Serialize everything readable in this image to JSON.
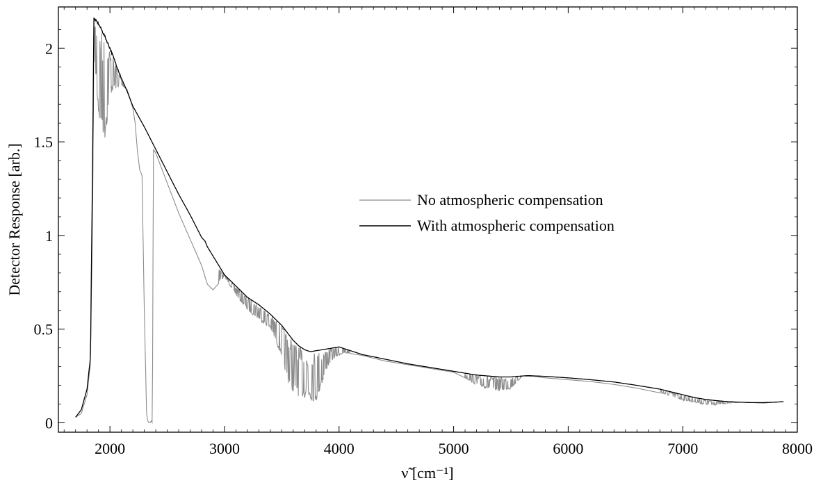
{
  "chart_data": {
    "type": "line",
    "xlabel": "ν̃ [cm⁻¹]",
    "ylabel": "Detector Response [arb.]",
    "xlim": [
      1550,
      8000
    ],
    "ylim": [
      -0.05,
      2.22
    ],
    "xticks": [
      2000,
      3000,
      4000,
      5000,
      6000,
      7000,
      8000
    ],
    "yticks": [
      0,
      0.5,
      1,
      1.5,
      2
    ],
    "ytick_labels": [
      "0",
      "0.5",
      "1",
      "1.5",
      "2"
    ],
    "grid": false,
    "legend_position": "center-right",
    "series": [
      {
        "name": "No atmospheric compensation",
        "color": "#8c8c8c",
        "noisy_ranges": [
          [
            1860,
            2150
          ],
          [
            2950,
            3620
          ],
          [
            3600,
            4100
          ],
          [
            5100,
            5620
          ],
          [
            6800,
            7450
          ]
        ],
        "x": [
          1700,
          1750,
          1800,
          1830,
          1850,
          1860,
          1880,
          1900,
          1930,
          1960,
          2000,
          2050,
          2100,
          2150,
          2200,
          2220,
          2240,
          2260,
          2280,
          2300,
          2320,
          2330,
          2340,
          2350,
          2360,
          2370,
          2380,
          2400,
          2450,
          2500,
          2600,
          2700,
          2800,
          2850,
          2900,
          3000,
          3100,
          3200,
          3300,
          3400,
          3500,
          3550,
          3600,
          3650,
          3700,
          3750,
          3800,
          3850,
          3900,
          3950,
          4000,
          4050,
          4100,
          4200,
          4400,
          4600,
          4800,
          5000,
          5100,
          5200,
          5300,
          5400,
          5500,
          5600,
          5700,
          5800,
          6000,
          6200,
          6400,
          6600,
          6800,
          6900,
          7000,
          7100,
          7200,
          7300,
          7400,
          7500,
          7600,
          7700,
          7800,
          7880
        ],
        "values": [
          0.03,
          0.05,
          0.15,
          0.32,
          1.2,
          1.95,
          1.8,
          1.6,
          1.55,
          1.5,
          1.75,
          1.78,
          1.8,
          1.78,
          1.68,
          1.6,
          1.45,
          1.35,
          1.32,
          0.6,
          0.05,
          0.01,
          0.0,
          0.0,
          0.01,
          0.0,
          1.46,
          1.44,
          1.36,
          1.28,
          1.12,
          0.98,
          0.84,
          0.74,
          0.71,
          0.78,
          0.68,
          0.6,
          0.55,
          0.5,
          0.35,
          0.22,
          0.16,
          0.14,
          0.13,
          0.12,
          0.11,
          0.2,
          0.3,
          0.34,
          0.36,
          0.37,
          0.37,
          0.36,
          0.33,
          0.31,
          0.29,
          0.27,
          0.24,
          0.2,
          0.18,
          0.17,
          0.18,
          0.25,
          0.248,
          0.24,
          0.23,
          0.22,
          0.205,
          0.185,
          0.16,
          0.14,
          0.12,
          0.11,
          0.095,
          0.095,
          0.105,
          0.11,
          0.108,
          0.105,
          0.11,
          0.113
        ]
      },
      {
        "name": "With atmospheric compensation",
        "color": "#000000",
        "x": [
          1700,
          1750,
          1800,
          1830,
          1850,
          1860,
          1900,
          1950,
          2000,
          2050,
          2100,
          2150,
          2200,
          2300,
          2400,
          2500,
          2600,
          2700,
          2800,
          2830,
          2850,
          2870,
          2900,
          2950,
          3000,
          3100,
          3200,
          3300,
          3400,
          3500,
          3550,
          3600,
          3650,
          3700,
          3750,
          3800,
          3900,
          4000,
          4050,
          4100,
          4200,
          4400,
          4600,
          4800,
          5000,
          5200,
          5400,
          5500,
          5600,
          5650,
          5800,
          6000,
          6200,
          6400,
          6600,
          6800,
          6900,
          7000,
          7100,
          7200,
          7300,
          7400,
          7500,
          7600,
          7700,
          7800,
          7880
        ],
        "values": [
          0.03,
          0.07,
          0.18,
          0.35,
          1.5,
          2.16,
          2.13,
          2.07,
          2.0,
          1.92,
          1.84,
          1.77,
          1.69,
          1.58,
          1.46,
          1.34,
          1.22,
          1.11,
          0.99,
          0.97,
          0.94,
          0.92,
          0.89,
          0.84,
          0.79,
          0.73,
          0.67,
          0.63,
          0.58,
          0.52,
          0.48,
          0.44,
          0.41,
          0.39,
          0.38,
          0.385,
          0.395,
          0.405,
          0.395,
          0.385,
          0.365,
          0.34,
          0.315,
          0.295,
          0.275,
          0.255,
          0.245,
          0.245,
          0.25,
          0.252,
          0.248,
          0.24,
          0.23,
          0.218,
          0.2,
          0.18,
          0.165,
          0.15,
          0.135,
          0.125,
          0.118,
          0.113,
          0.11,
          0.108,
          0.108,
          0.11,
          0.113
        ]
      }
    ]
  }
}
